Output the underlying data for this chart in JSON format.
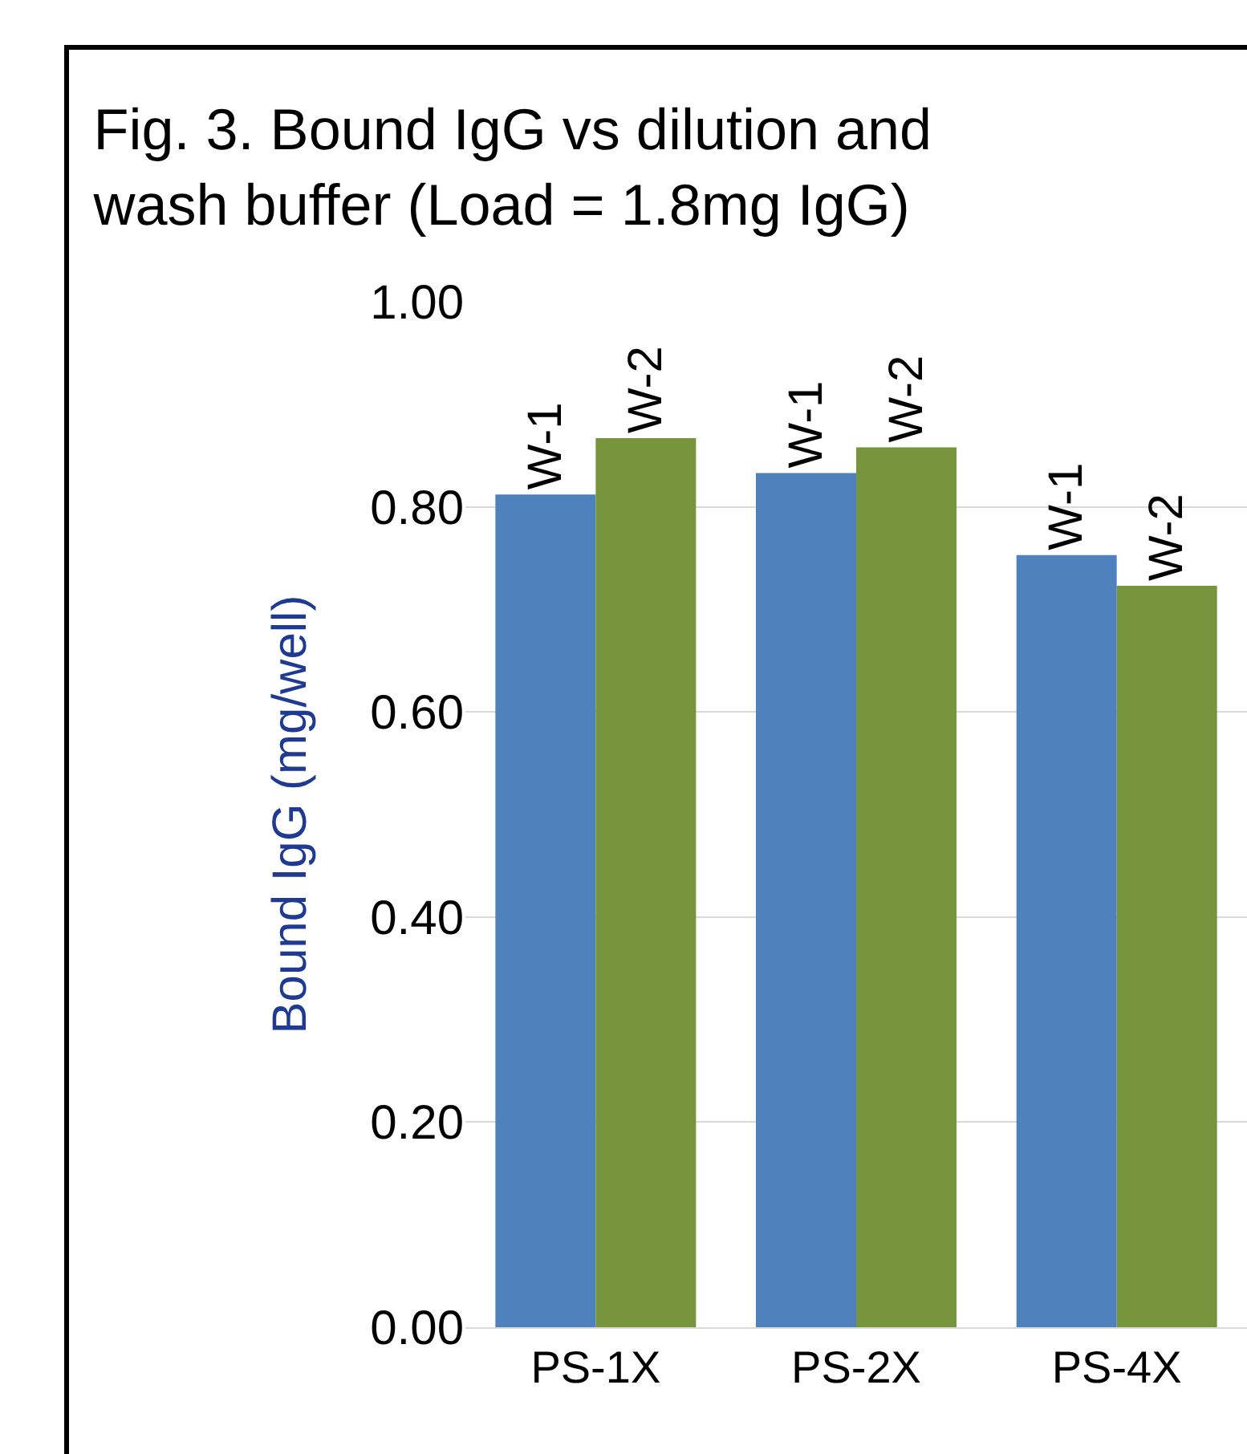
{
  "chart_data": {
    "type": "bar",
    "title": "Fig. 3. Bound IgG vs dilution and wash buffer (Load = 1.8mg IgG)",
    "ylabel": "Bound IgG (mg/well)",
    "categories": [
      "PS-1X",
      "PS-2X",
      "PS-4X"
    ],
    "series": [
      {
        "name": "W-1",
        "color": "#4f81bd",
        "values": [
          0.812,
          0.833,
          0.753
        ]
      },
      {
        "name": "W-2",
        "color": "#77953d",
        "values": [
          0.867,
          0.858,
          0.723
        ]
      }
    ],
    "ylim": [
      0,
      1
    ],
    "yticks": [
      {
        "value": 0,
        "label": "0.00"
      },
      {
        "value": 0.2,
        "label": "0.20"
      },
      {
        "value": 0.4,
        "label": "0.40"
      },
      {
        "value": 0.6,
        "label": "0.60"
      },
      {
        "value": 0.8,
        "label": "0.80"
      },
      {
        "value": 1,
        "label": "1.00"
      }
    ],
    "grid": "y",
    "legend": false
  }
}
